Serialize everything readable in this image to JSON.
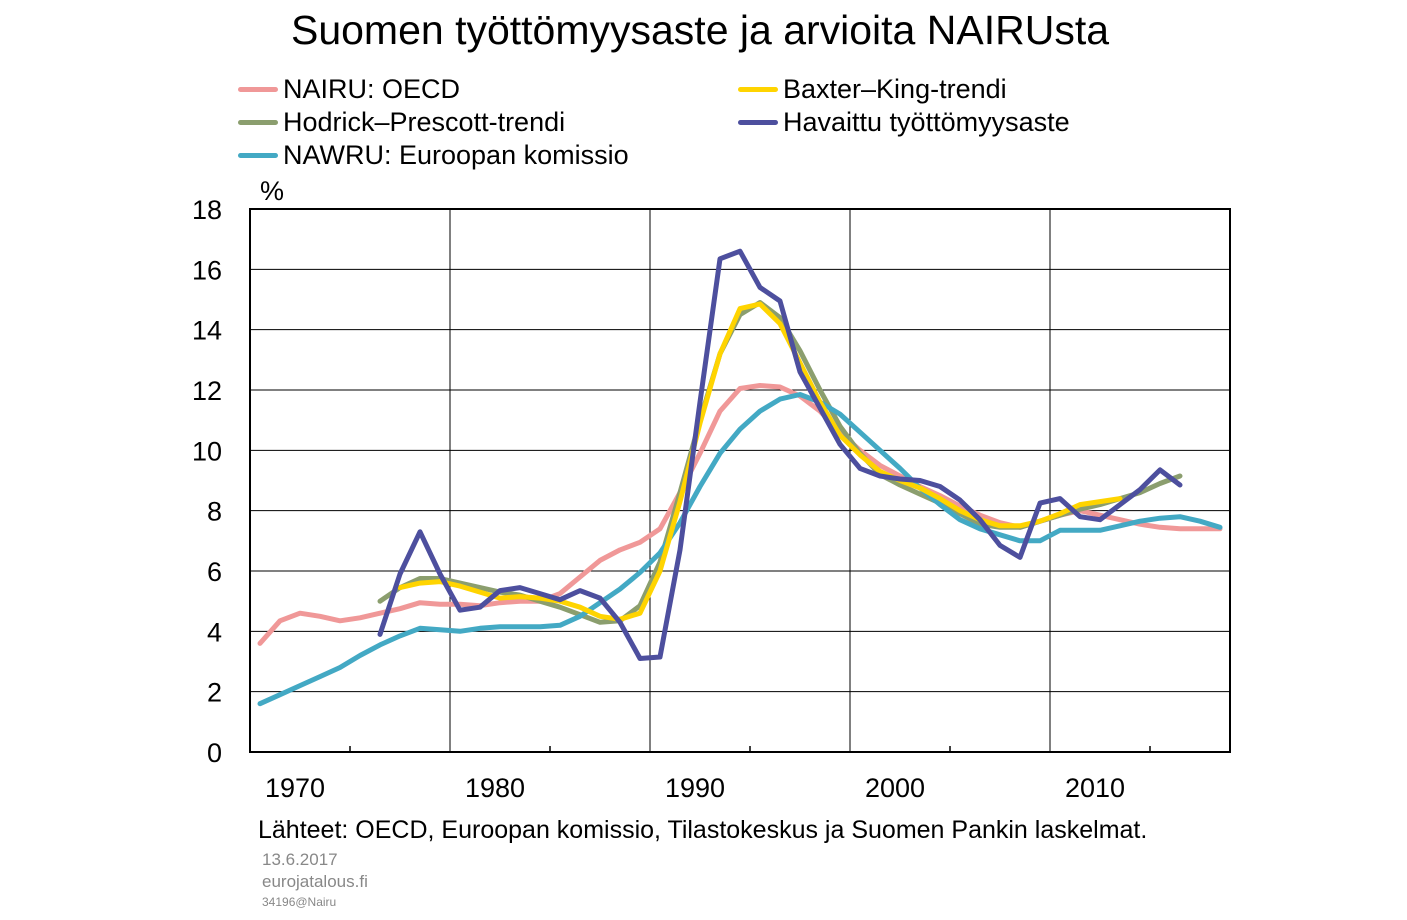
{
  "chart_data": {
    "type": "line",
    "title": "Suomen työttömyysaste ja arvioita NAIRUsta",
    "ylabel": "%",
    "xlabel": "",
    "xlim": [
      1969.5,
      2018.5
    ],
    "ylim": [
      0,
      18
    ],
    "yticks": [
      "0",
      "2",
      "4",
      "6",
      "8",
      "10",
      "12",
      "14",
      "16",
      "18"
    ],
    "xticks": [
      "1970",
      "1980",
      "1990",
      "2000",
      "2010"
    ],
    "grid": true,
    "legend_position": "top",
    "series": [
      {
        "name": "NAIRU: OECD",
        "color": "#f09898",
        "x": [
          1970,
          1971,
          1972,
          1973,
          1974,
          1975,
          1976,
          1977,
          1978,
          1979,
          1980,
          1981,
          1982,
          1983,
          1984,
          1985,
          1986,
          1987,
          1988,
          1989,
          1990,
          1991,
          1992,
          1993,
          1994,
          1995,
          1996,
          1997,
          1998,
          1999,
          2000,
          2001,
          2002,
          2003,
          2004,
          2005,
          2006,
          2007,
          2008,
          2009,
          2010,
          2011,
          2012,
          2013,
          2014,
          2015,
          2016,
          2017,
          2018
        ],
        "y": [
          3.6,
          4.35,
          4.6,
          4.5,
          4.35,
          4.45,
          4.6,
          4.75,
          4.95,
          4.9,
          4.9,
          4.85,
          4.95,
          5.0,
          5.0,
          5.25,
          5.8,
          6.35,
          6.7,
          6.95,
          7.4,
          8.6,
          9.9,
          11.3,
          12.05,
          12.15,
          12.1,
          11.8,
          11.3,
          10.6,
          10.0,
          9.5,
          9.15,
          8.8,
          8.5,
          8.15,
          7.85,
          7.6,
          7.45,
          7.65,
          7.85,
          8.0,
          7.85,
          7.7,
          7.55,
          7.45,
          7.4,
          7.4,
          7.4
        ]
      },
      {
        "name": "Hodrick–Prescott-trendi",
        "color": "#8b9e6e",
        "x": [
          1976,
          1977,
          1978,
          1979,
          1980,
          1981,
          1982,
          1983,
          1984,
          1985,
          1986,
          1987,
          1988,
          1989,
          1990,
          1991,
          1992,
          1993,
          1994,
          1995,
          1996,
          1997,
          1998,
          1999,
          2000,
          2001,
          2002,
          2003,
          2004,
          2005,
          2006,
          2007,
          2008,
          2009,
          2010,
          2011,
          2012,
          2013,
          2014,
          2015,
          2016
        ],
        "y": [
          5.0,
          5.45,
          5.75,
          5.75,
          5.6,
          5.45,
          5.3,
          5.2,
          5.0,
          4.8,
          4.55,
          4.3,
          4.35,
          4.85,
          6.3,
          8.6,
          11.0,
          13.2,
          14.5,
          14.9,
          14.4,
          13.3,
          12.0,
          10.8,
          9.9,
          9.2,
          8.85,
          8.55,
          8.25,
          7.9,
          7.55,
          7.45,
          7.45,
          7.65,
          7.85,
          8.05,
          8.2,
          8.4,
          8.6,
          8.9,
          9.15
        ]
      },
      {
        "name": "NAWRU: Euroopan komissio",
        "color": "#43a9c4",
        "x": [
          1970,
          1971,
          1972,
          1973,
          1974,
          1975,
          1976,
          1977,
          1978,
          1979,
          1980,
          1981,
          1982,
          1983,
          1984,
          1985,
          1986,
          1987,
          1988,
          1989,
          1990,
          1991,
          1992,
          1993,
          1994,
          1995,
          1996,
          1997,
          1998,
          1999,
          2000,
          2001,
          2002,
          2003,
          2004,
          2005,
          2006,
          2007,
          2008,
          2009,
          2010,
          2011,
          2012,
          2013,
          2014,
          2015,
          2016,
          2017,
          2018
        ],
        "y": [
          1.6,
          1.9,
          2.2,
          2.5,
          2.8,
          3.2,
          3.55,
          3.85,
          4.1,
          4.05,
          4.0,
          4.1,
          4.15,
          4.15,
          4.15,
          4.2,
          4.5,
          4.95,
          5.4,
          5.95,
          6.6,
          7.6,
          8.8,
          9.9,
          10.7,
          11.3,
          11.7,
          11.85,
          11.6,
          11.2,
          10.6,
          10.0,
          9.4,
          8.75,
          8.2,
          7.7,
          7.4,
          7.2,
          7.0,
          7.0,
          7.35,
          7.35,
          7.35,
          7.5,
          7.65,
          7.75,
          7.8,
          7.65,
          7.45
        ]
      },
      {
        "name": "Baxter–King-trendi",
        "color": "#ffd400",
        "x": [
          1977,
          1978,
          1979,
          1980,
          1981,
          1982,
          1983,
          1984,
          1985,
          1986,
          1987,
          1988,
          1989,
          1990,
          1991,
          1992,
          1993,
          1994,
          1995,
          1996,
          1997,
          1998,
          1999,
          2000,
          2001,
          2002,
          2003,
          2004,
          2005,
          2006,
          2007,
          2008,
          2009,
          2010,
          2011,
          2012,
          2013
        ],
        "y": [
          5.45,
          5.6,
          5.65,
          5.5,
          5.3,
          5.1,
          5.15,
          5.1,
          5.0,
          4.8,
          4.5,
          4.4,
          4.6,
          6.0,
          8.3,
          10.9,
          13.2,
          14.7,
          14.85,
          14.2,
          12.9,
          11.6,
          10.5,
          9.85,
          9.3,
          9.0,
          8.75,
          8.4,
          8.0,
          7.7,
          7.5,
          7.5,
          7.65,
          7.9,
          8.2,
          8.3,
          8.4
        ]
      },
      {
        "name": "Havaittu työttömyysaste",
        "color": "#4d4f9e",
        "x": [
          1976,
          1977,
          1978,
          1979,
          1980,
          1981,
          1982,
          1983,
          1984,
          1985,
          1986,
          1987,
          1988,
          1989,
          1990,
          1991,
          1992,
          1993,
          1994,
          1995,
          1996,
          1997,
          1998,
          1999,
          2000,
          2001,
          2002,
          2003,
          2004,
          2005,
          2006,
          2007,
          2008,
          2009,
          2010,
          2011,
          2012,
          2013,
          2014,
          2015,
          2016
        ],
        "y": [
          3.9,
          5.9,
          7.3,
          5.9,
          4.7,
          4.8,
          5.35,
          5.45,
          5.25,
          5.05,
          5.35,
          5.1,
          4.3,
          3.1,
          3.15,
          6.7,
          11.6,
          16.35,
          16.6,
          15.4,
          14.95,
          12.6,
          11.4,
          10.2,
          9.4,
          9.15,
          9.05,
          9.0,
          8.8,
          8.35,
          7.7,
          6.85,
          6.45,
          8.25,
          8.4,
          7.8,
          7.7,
          8.2,
          8.7,
          9.35,
          8.85
        ]
      }
    ]
  },
  "legend": [
    {
      "label": "NAIRU: OECD",
      "color": "#f09898"
    },
    {
      "label": "Baxter–King-trendi",
      "color": "#ffd400"
    },
    {
      "label": "Hodrick–Prescott-trendi",
      "color": "#8b9e6e"
    },
    {
      "label": "Havaittu työttömyysaste",
      "color": "#4d4f9e"
    },
    {
      "label": "NAWRU: Euroopan komissio",
      "color": "#43a9c4"
    }
  ],
  "source_note": "Lähteet: OECD, Euroopan komissio, Tilastokeskus ja Suomen Pankin laskelmat.",
  "footer": {
    "date": "13.6.2017",
    "site": "eurojatalous.fi",
    "code": "34196@Nairu"
  }
}
